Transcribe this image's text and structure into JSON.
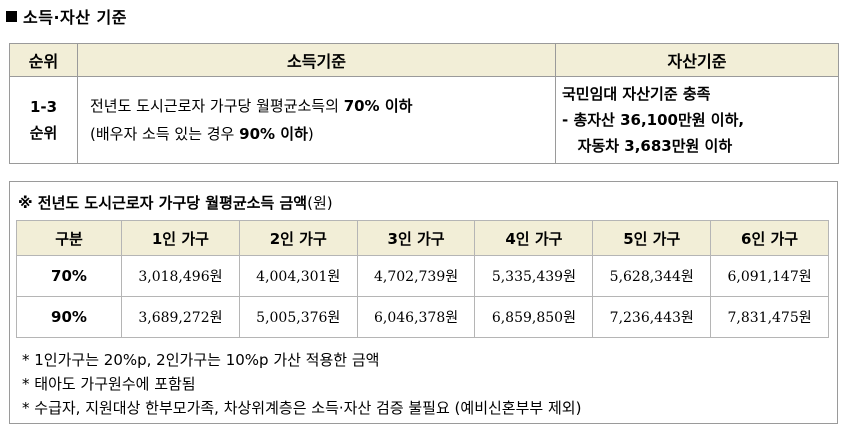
{
  "title": "소득·자산 기준",
  "criteria": {
    "headers": [
      "순위",
      "소득기준",
      "자산기준"
    ],
    "rank": [
      "1-3",
      "순위"
    ],
    "income_line1_pre": "전년도 도시근로자 가구당 월평균소득의 ",
    "income_line1_bold": "70% 이하",
    "income_line2_pre": "(배우자 소득 있는 경우 ",
    "income_line2_bold": "90% 이하",
    "income_line2_post": ")",
    "asset_lines": [
      "국민임대 자산기준 충족",
      "- 총자산 36,100만원 이하,",
      "   자동차 3,683만원 이하"
    ]
  },
  "amounts": {
    "heading_bold": "※ 전년도 도시근로자 가구당 월평균소득 금액",
    "heading_unit": "(원)",
    "columns": [
      "구분",
      "1인 가구",
      "2인 가구",
      "3인 가구",
      "4인 가구",
      "5인 가구",
      "6인 가구"
    ],
    "rows": [
      {
        "label": "70%",
        "values": [
          "3,018,496원",
          "4,004,301원",
          "4,702,739원",
          "5,335,439원",
          "5,628,344원",
          "6,091,147원"
        ]
      },
      {
        "label": "90%",
        "values": [
          "3,689,272원",
          "5,005,376원",
          "6,046,378원",
          "6,859,850원",
          "7,236,443원",
          "7,831,475원"
        ]
      }
    ]
  },
  "footnotes": [
    "* 1인가구는 20%p, 2인가구는 10%p 가산 적용한 금액",
    "* 태아도 가구원수에 포함됨",
    "* 수급자, 지원대상 한부모가족, 차상위계층은 소득·자산 검증 불필요 (예비신혼부부 제외)"
  ]
}
